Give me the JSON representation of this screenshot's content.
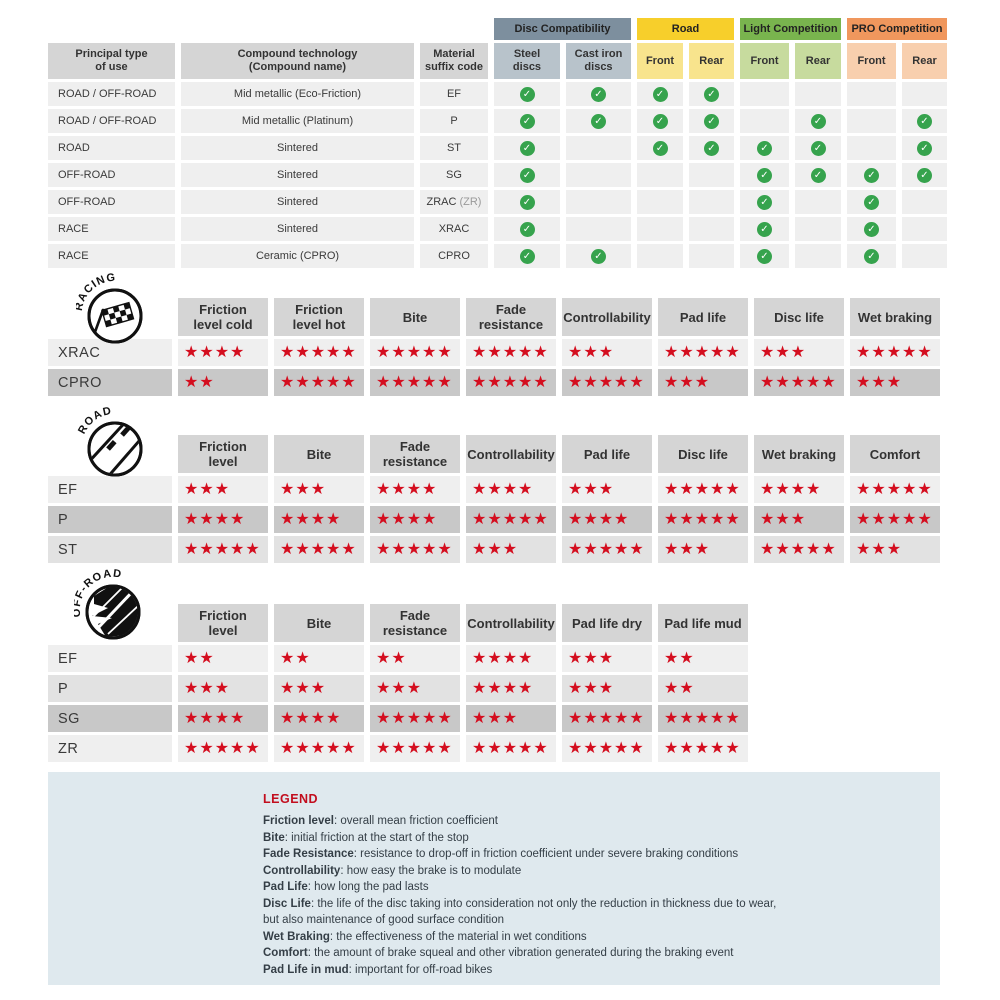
{
  "palette": {
    "star_red": "#d40e1f",
    "check_green": "#36a34d",
    "header_gray": "#d5d5d5",
    "row_light": "#efefef",
    "row_mid": "#e2e2e2",
    "row_dark": "#c8c8c8",
    "legend_bg": "#dfe9ee",
    "legend_title_red": "#c20e1e"
  },
  "chart_data": [
    {
      "id": "compatibility",
      "type": "table",
      "title": "Brake compound compatibility matrix",
      "column_groups": [
        {
          "label": "Disc Compatibility",
          "color": "#7d8f9e",
          "sub_color": "#b8c3cb"
        },
        {
          "label": "Road",
          "color": "#f7cf2b",
          "sub_color": "#f8e48d"
        },
        {
          "label": "Light Competition",
          "color": "#79b44e",
          "sub_color": "#c7db9e"
        },
        {
          "label": "PRO Competition",
          "color": "#f0975d",
          "sub_color": "#f8cfae"
        }
      ],
      "columns": [
        "Principal type of use",
        "Compound technology (Compound name)",
        "Material suffix code",
        "Steel discs",
        "Cast iron discs",
        "Road Front",
        "Road Rear",
        "Light Competition Front",
        "Light Competition Rear",
        "PRO Competition Front",
        "PRO Competition Rear"
      ],
      "columns_display": {
        "main": [
          "Principal type\nof use",
          "Compound technology\n(Compound name)",
          "Material\nsuffix code"
        ],
        "sub": [
          "Steel\ndiscs",
          "Cast iron\ndiscs",
          "Front",
          "Rear",
          "Front",
          "Rear",
          "Front",
          "Rear"
        ]
      },
      "rows": [
        {
          "use": "ROAD / OFF-ROAD",
          "technology": "Mid metallic (Eco-Friction)",
          "code": "EF",
          "code_note": "",
          "checks": [
            1,
            1,
            1,
            1,
            0,
            0,
            0,
            0
          ]
        },
        {
          "use": "ROAD / OFF-ROAD",
          "technology": "Mid metallic (Platinum)",
          "code": "P",
          "code_note": "",
          "checks": [
            1,
            1,
            1,
            1,
            0,
            1,
            0,
            1
          ]
        },
        {
          "use": "ROAD",
          "technology": "Sintered",
          "code": "ST",
          "code_note": "",
          "checks": [
            1,
            0,
            1,
            1,
            1,
            1,
            0,
            1
          ]
        },
        {
          "use": "OFF-ROAD",
          "technology": "Sintered",
          "code": "SG",
          "code_note": "",
          "checks": [
            1,
            0,
            0,
            0,
            1,
            1,
            1,
            1
          ]
        },
        {
          "use": "OFF-ROAD",
          "technology": "Sintered",
          "code": "ZRAC",
          "code_note": "(ZR)",
          "checks": [
            1,
            0,
            0,
            0,
            1,
            0,
            1,
            0
          ]
        },
        {
          "use": "RACE",
          "technology": "Sintered",
          "code": "XRAC",
          "code_note": "",
          "checks": [
            1,
            0,
            0,
            0,
            1,
            0,
            1,
            0
          ]
        },
        {
          "use": "RACE",
          "technology": "Ceramic (CPRO)",
          "code": "CPRO",
          "code_note": "",
          "checks": [
            1,
            1,
            0,
            0,
            1,
            0,
            1,
            0
          ]
        }
      ]
    },
    {
      "id": "racing",
      "type": "table",
      "section_label": "RACING",
      "icon": "racing-checkered-flag-icon",
      "max_stars": 5,
      "columns": [
        "Friction level cold",
        "Friction level hot",
        "Bite",
        "Fade resistance",
        "Controllability",
        "Pad life",
        "Disc life",
        "Wet braking"
      ],
      "columns_display": [
        "Friction\nlevel cold",
        "Friction\nlevel hot",
        "Bite",
        "Fade\nresistance",
        "Controllability",
        "Pad life",
        "Disc life",
        "Wet braking"
      ],
      "rows": [
        {
          "label": "XRAC",
          "tone": "light",
          "stars": [
            4,
            5,
            5,
            5,
            3,
            5,
            3,
            5
          ]
        },
        {
          "label": "CPRO",
          "tone": "dark",
          "stars": [
            2,
            5,
            5,
            5,
            5,
            3,
            5,
            3
          ]
        }
      ]
    },
    {
      "id": "road",
      "type": "table",
      "section_label": "ROAD",
      "icon": "road-icon",
      "max_stars": 5,
      "columns": [
        "Friction level",
        "Bite",
        "Fade resistance",
        "Controllability",
        "Pad life",
        "Disc life",
        "Wet braking",
        "Comfort"
      ],
      "columns_display": [
        "Friction\nlevel",
        "Bite",
        "Fade\nresistance",
        "Controllability",
        "Pad life",
        "Disc life",
        "Wet braking",
        "Comfort"
      ],
      "rows": [
        {
          "label": "EF",
          "tone": "light",
          "stars": [
            3,
            3,
            4,
            4,
            3,
            5,
            4,
            5
          ]
        },
        {
          "label": "P",
          "tone": "dark",
          "stars": [
            4,
            4,
            4,
            5,
            4,
            5,
            3,
            5
          ]
        },
        {
          "label": "ST",
          "tone": "mid",
          "stars": [
            5,
            5,
            5,
            3,
            5,
            3,
            5,
            3
          ]
        }
      ]
    },
    {
      "id": "offroad",
      "type": "table",
      "section_label": "OFF-ROAD",
      "icon": "offroad-splash-icon",
      "max_stars": 5,
      "columns": [
        "Friction level",
        "Bite",
        "Fade resistance",
        "Controllability",
        "Pad life dry",
        "Pad life mud"
      ],
      "columns_display": [
        "Friction\nlevel",
        "Bite",
        "Fade\nresistance",
        "Controllability",
        "Pad life dry",
        "Pad life mud"
      ],
      "rows": [
        {
          "label": "EF",
          "tone": "light",
          "stars": [
            2,
            2,
            2,
            4,
            3,
            2
          ]
        },
        {
          "label": "P",
          "tone": "mid",
          "stars": [
            3,
            3,
            3,
            4,
            3,
            2
          ]
        },
        {
          "label": "SG",
          "tone": "dark",
          "stars": [
            4,
            4,
            5,
            3,
            5,
            5
          ]
        },
        {
          "label": "ZR",
          "tone": "light",
          "stars": [
            5,
            5,
            5,
            5,
            5,
            5
          ]
        }
      ]
    }
  ],
  "legend": {
    "title": "LEGEND",
    "lines": [
      {
        "term": "Friction level",
        "desc": "overall mean friction coefficient"
      },
      {
        "term": "Bite",
        "desc": "initial friction at the start of the stop"
      },
      {
        "term": "Fade Resistance",
        "desc": "resistance to drop-off in friction coefficient under severe braking conditions"
      },
      {
        "term": "Controllability",
        "desc": "how easy the brake is to modulate"
      },
      {
        "term": "Pad Life",
        "desc": "how long the pad lasts"
      },
      {
        "term": "Disc Life",
        "desc": "the life of the disc taking into consideration not only the reduction in thickness due to wear,"
      },
      {
        "term": "",
        "desc": "but also maintenance of good surface condition"
      },
      {
        "term": "Wet Braking",
        "desc": "the effectiveness of the material in wet conditions"
      },
      {
        "term": "Comfort",
        "desc": "the amount of brake squeal and other vibration generated during the braking event"
      },
      {
        "term": "Pad Life in mud",
        "desc": "important for off-road bikes"
      }
    ]
  }
}
